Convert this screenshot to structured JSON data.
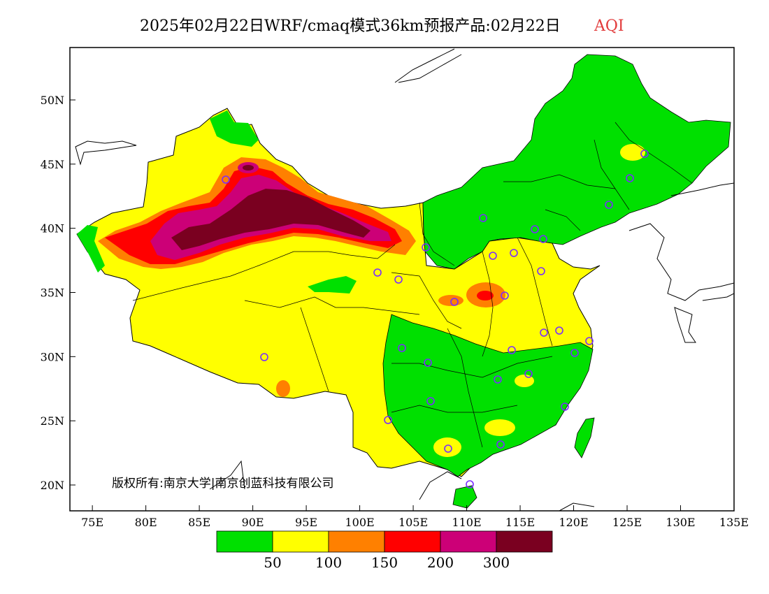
{
  "title": {
    "main": "2025年02月22日WRF/cmaq模式36km预报产品:02月22日",
    "variable": "AQI",
    "variable_color": "#e23b3b"
  },
  "axes": {
    "x_ticks": [
      "75E",
      "80E",
      "85E",
      "90E",
      "95E",
      "100E",
      "105E",
      "110E",
      "115E",
      "120E",
      "125E",
      "130E",
      "135E"
    ],
    "y_ticks": [
      "50N",
      "45N",
      "40N",
      "35N",
      "30N",
      "25N",
      "20N"
    ]
  },
  "copyright": "版权所有:南京大学|南京创蓝科技有限公司",
  "colorbar": {
    "colors": [
      "#00e000",
      "#ffff00",
      "#ff8000",
      "#ff0000",
      "#cc0077",
      "#7a0020"
    ],
    "labels": [
      "50",
      "100",
      "150",
      "200",
      "300"
    ]
  },
  "colors": {
    "good": "#00e000",
    "moderate": "#ffff00",
    "usg": "#ff8000",
    "unhealthy": "#ff0000",
    "very_unhealthy": "#cc0077",
    "hazardous": "#7a0020",
    "station": "#7a2cff"
  }
}
